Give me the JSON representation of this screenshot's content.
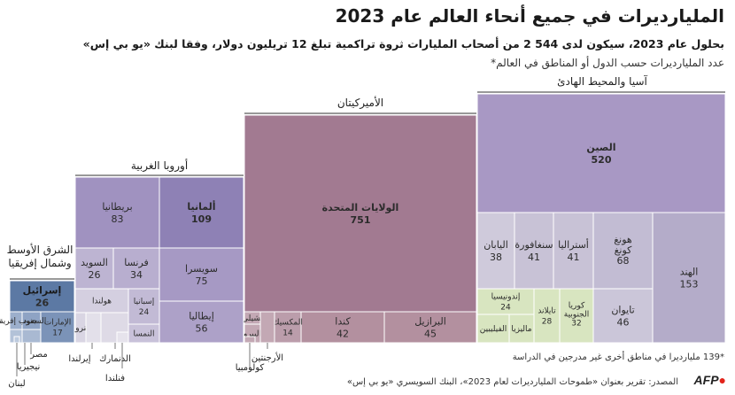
{
  "header": {
    "title": "المليارديرات في جميع أنحاء العالم عام 2023",
    "subtitle": "بحلول عام 2023، سيكون لدى 544 2 من أصحاب المليارات ثروة تراكمية تبلغ 12 تريليون دولار، وفقا لبنك «يو بي إس»",
    "metric_note": "عدد المليارديرات حسب الدول أو المناطق في العالم*"
  },
  "footer": {
    "footnote": "*139 مليارديرا في مناطق أخرى غير مدرجين في الدراسة",
    "source": "المصدر: تقرير بعنوان «طموحات المليارديرات لعام 2023»، البنك السويسري «يو بي إس»",
    "logo": "AFP"
  },
  "chart_data": {
    "type": "treemap",
    "value_label": "عدد المليارديرات",
    "groups": [
      {
        "name": "آسيا والمحيط الهادئ",
        "color": "#8c7ab0",
        "children": [
          {
            "name": "الصين",
            "value": 520,
            "color": "#a898c4"
          },
          {
            "name": "الهند",
            "value": 153,
            "color": "#b4acc9"
          },
          {
            "name": "هونغ كونغ",
            "value": 68,
            "color": "#c2bcd3"
          },
          {
            "name": "أستراليا",
            "value": 41,
            "color": "#c8c2d6"
          },
          {
            "name": "سنغافورة",
            "value": 41,
            "color": "#c8c2d6"
          },
          {
            "name": "اليابان",
            "value": 38,
            "color": "#cfcadb"
          },
          {
            "name": "تايوان",
            "value": 46,
            "color": "#cbc6d9"
          },
          {
            "name": "كوريا الجنوبية",
            "value": 32,
            "color": "#d8e5c0"
          },
          {
            "name": "تايلاند",
            "value": 28,
            "color": "#d8e5c0"
          },
          {
            "name": "إندونيسيا",
            "value": 24,
            "color": "#d8e5c0"
          },
          {
            "name": "ماليزيا",
            "value": null,
            "color": "#d8e5c0"
          },
          {
            "name": "الفيليبين",
            "value": null,
            "color": "#d8e5c0"
          }
        ]
      },
      {
        "name": "الأميركيتان",
        "color": "#8f5c78",
        "children": [
          {
            "name": "الولايات المتحدة",
            "value": 751,
            "color": "#a27a91"
          },
          {
            "name": "البرازيل",
            "value": 45,
            "color": "#b3909f"
          },
          {
            "name": "كندا",
            "value": 42,
            "color": "#b3909f"
          },
          {
            "name": "المكسيك",
            "value": 14,
            "color": "#bb9dab"
          },
          {
            "name": "تشيلي",
            "value": null,
            "color": "#c3a8b4"
          },
          {
            "name": "البيرو",
            "value": null,
            "color": "#c3a8b4"
          },
          {
            "name": "الأرجنتين",
            "value": null,
            "color": "#c3a8b4"
          },
          {
            "name": "كولومبيا",
            "value": null,
            "color": "#c3a8b4"
          }
        ]
      },
      {
        "name": "أوروبا الغربية",
        "color": "#6f5fa0",
        "children": [
          {
            "name": "ألمانيا",
            "value": 109,
            "color": "#8e81b5"
          },
          {
            "name": "بريطانيا",
            "value": 83,
            "color": "#a092c0"
          },
          {
            "name": "سويسرا",
            "value": 75,
            "color": "#a699c4"
          },
          {
            "name": "إيطاليا",
            "value": 56,
            "color": "#ada1c8"
          },
          {
            "name": "فرنسا",
            "value": 34,
            "color": "#b8aecf"
          },
          {
            "name": "السويد",
            "value": 26,
            "color": "#bdb4d2"
          },
          {
            "name": "إسبانيا",
            "value": 24,
            "color": "#c2bad5"
          },
          {
            "name": "النمسا",
            "value": null,
            "color": "#c8c1d9"
          },
          {
            "name": "هولندا",
            "value": null,
            "color": "#d4cfe0"
          },
          {
            "name": "النروج",
            "value": null,
            "color": "#d9d5e3"
          },
          {
            "name": "الدنمارك",
            "value": null,
            "color": "#dedae6"
          },
          {
            "name": "إيرلندا",
            "value": null,
            "color": "#e3e0ea"
          },
          {
            "name": "فنلندا",
            "value": null,
            "color": "#e6e3ec"
          }
        ]
      },
      {
        "name": "الشرق الأوسط وشمال إفريقيا",
        "color": "#4a6896",
        "children": [
          {
            "name": "إسرائيل",
            "value": 26,
            "color": "#5c79a4"
          },
          {
            "name": "الإمارات",
            "value": 17,
            "color": "#7b93b8"
          },
          {
            "name": "السعودية",
            "value": null,
            "color": "#8ea3c4"
          },
          {
            "name": "جنوب إفريقيا",
            "value": null,
            "color": "#9cafcc"
          },
          {
            "name": "مصر",
            "value": null,
            "color": "#a9b9d2"
          },
          {
            "name": "نيجيريا",
            "value": null,
            "color": "#b3c2d8"
          },
          {
            "name": "لبنان",
            "value": null,
            "color": "#bccade"
          }
        ]
      }
    ]
  }
}
